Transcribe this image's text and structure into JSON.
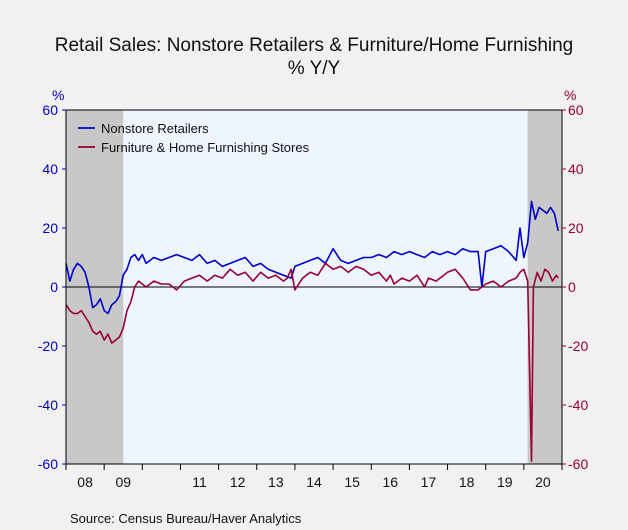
{
  "chart_data": {
    "type": "line",
    "title": "Retail Sales: Nonstore Retailers & Furniture/Home Furnishing",
    "subtitle": "% Y/Y",
    "y_left_unit": "%",
    "y_right_unit": "%",
    "ylim": [
      -60,
      60
    ],
    "y_ticks": [
      60,
      40,
      20,
      0,
      -20,
      -40,
      -60
    ],
    "x_tick_labels": [
      "08",
      "09",
      "11",
      "12",
      "13",
      "14",
      "15",
      "16",
      "17",
      "18",
      "19",
      "20"
    ],
    "x_label_years": [
      2008,
      2009,
      2011,
      2012,
      2013,
      2014,
      2015,
      2016,
      2017,
      2018,
      2019,
      2020
    ],
    "x_range": [
      2008.0,
      2021.0
    ],
    "recession_shading": [
      [
        2008.0,
        2009.5
      ],
      [
        2020.1,
        2021.0
      ]
    ],
    "zero_line": true,
    "legend_position": "top-left",
    "series": [
      {
        "name": "Nonstore Retailers",
        "color": "#0000cc",
        "axis": "left",
        "x": [
          2008.0,
          2008.1,
          2008.2,
          2008.3,
          2008.4,
          2008.5,
          2008.6,
          2008.7,
          2008.8,
          2008.9,
          2009.0,
          2009.1,
          2009.2,
          2009.3,
          2009.4,
          2009.5,
          2009.6,
          2009.7,
          2009.8,
          2009.9,
          2010.0,
          2010.1,
          2010.3,
          2010.5,
          2010.7,
          2010.9,
          2011.1,
          2011.3,
          2011.5,
          2011.7,
          2011.9,
          2012.1,
          2012.3,
          2012.5,
          2012.7,
          2012.9,
          2013.1,
          2013.3,
          2013.5,
          2013.7,
          2013.9,
          2014.0,
          2014.2,
          2014.4,
          2014.6,
          2014.8,
          2015.0,
          2015.2,
          2015.4,
          2015.6,
          2015.8,
          2016.0,
          2016.2,
          2016.4,
          2016.6,
          2016.8,
          2017.0,
          2017.2,
          2017.4,
          2017.6,
          2017.8,
          2018.0,
          2018.2,
          2018.4,
          2018.6,
          2018.8,
          2018.9,
          2019.0,
          2019.2,
          2019.4,
          2019.6,
          2019.8,
          2019.9,
          2020.0,
          2020.1,
          2020.2,
          2020.3,
          2020.4,
          2020.5,
          2020.6,
          2020.7,
          2020.8,
          2020.9
        ],
        "y": [
          8,
          2,
          6,
          8,
          7,
          5,
          0,
          -7,
          -6,
          -4,
          -8,
          -9,
          -6,
          -5,
          -3,
          4,
          6,
          10,
          11,
          9,
          11,
          8,
          10,
          9,
          10,
          11,
          10,
          9,
          11,
          8,
          9,
          7,
          8,
          9,
          10,
          7,
          8,
          6,
          5,
          4,
          3,
          7,
          8,
          9,
          10,
          8,
          13,
          9,
          8,
          9,
          10,
          10,
          11,
          10,
          12,
          11,
          12,
          11,
          10,
          12,
          11,
          12,
          11,
          13,
          12,
          12,
          0,
          12,
          13,
          14,
          12,
          9,
          20,
          10,
          15,
          29,
          23,
          27,
          26,
          25,
          27,
          25,
          19
        ]
      },
      {
        "name": "Furniture & Home Furnishing Stores",
        "color": "#990033",
        "axis": "right",
        "x": [
          2008.0,
          2008.1,
          2008.2,
          2008.3,
          2008.4,
          2008.5,
          2008.6,
          2008.7,
          2008.8,
          2008.9,
          2009.0,
          2009.1,
          2009.2,
          2009.3,
          2009.4,
          2009.5,
          2009.6,
          2009.7,
          2009.8,
          2009.9,
          2010.0,
          2010.1,
          2010.3,
          2010.5,
          2010.7,
          2010.9,
          2011.1,
          2011.3,
          2011.5,
          2011.7,
          2011.9,
          2012.1,
          2012.3,
          2012.5,
          2012.7,
          2012.9,
          2013.1,
          2013.3,
          2013.5,
          2013.7,
          2013.8,
          2013.9,
          2014.0,
          2014.2,
          2014.4,
          2014.6,
          2014.8,
          2015.0,
          2015.2,
          2015.4,
          2015.6,
          2015.8,
          2016.0,
          2016.2,
          2016.4,
          2016.5,
          2016.6,
          2016.8,
          2017.0,
          2017.2,
          2017.4,
          2017.5,
          2017.7,
          2017.9,
          2018.0,
          2018.2,
          2018.4,
          2018.6,
          2018.8,
          2019.0,
          2019.2,
          2019.4,
          2019.6,
          2019.8,
          2019.9,
          2020.0,
          2020.1,
          2020.2,
          2020.25,
          2020.35,
          2020.45,
          2020.55,
          2020.65,
          2020.75,
          2020.85,
          2020.9
        ],
        "y": [
          -6,
          -8,
          -9,
          -9,
          -8,
          -10,
          -12,
          -15,
          -16,
          -15,
          -18,
          -16,
          -19,
          -18,
          -17,
          -14,
          -8,
          -5,
          0,
          2,
          1,
          0,
          2,
          1,
          1,
          -1,
          2,
          3,
          4,
          2,
          4,
          3,
          6,
          4,
          5,
          2,
          5,
          3,
          4,
          2,
          3,
          6,
          -1,
          3,
          5,
          4,
          8,
          6,
          7,
          5,
          7,
          6,
          4,
          5,
          2,
          4,
          1,
          3,
          2,
          4,
          0,
          3,
          2,
          4,
          5,
          6,
          3,
          -1,
          -1,
          1,
          2,
          0,
          2,
          3,
          5,
          6,
          2,
          -59,
          0,
          5,
          2,
          6,
          5,
          2,
          4,
          3
        ]
      }
    ]
  },
  "source": "Source:   Census Bureau/Haver Analytics"
}
